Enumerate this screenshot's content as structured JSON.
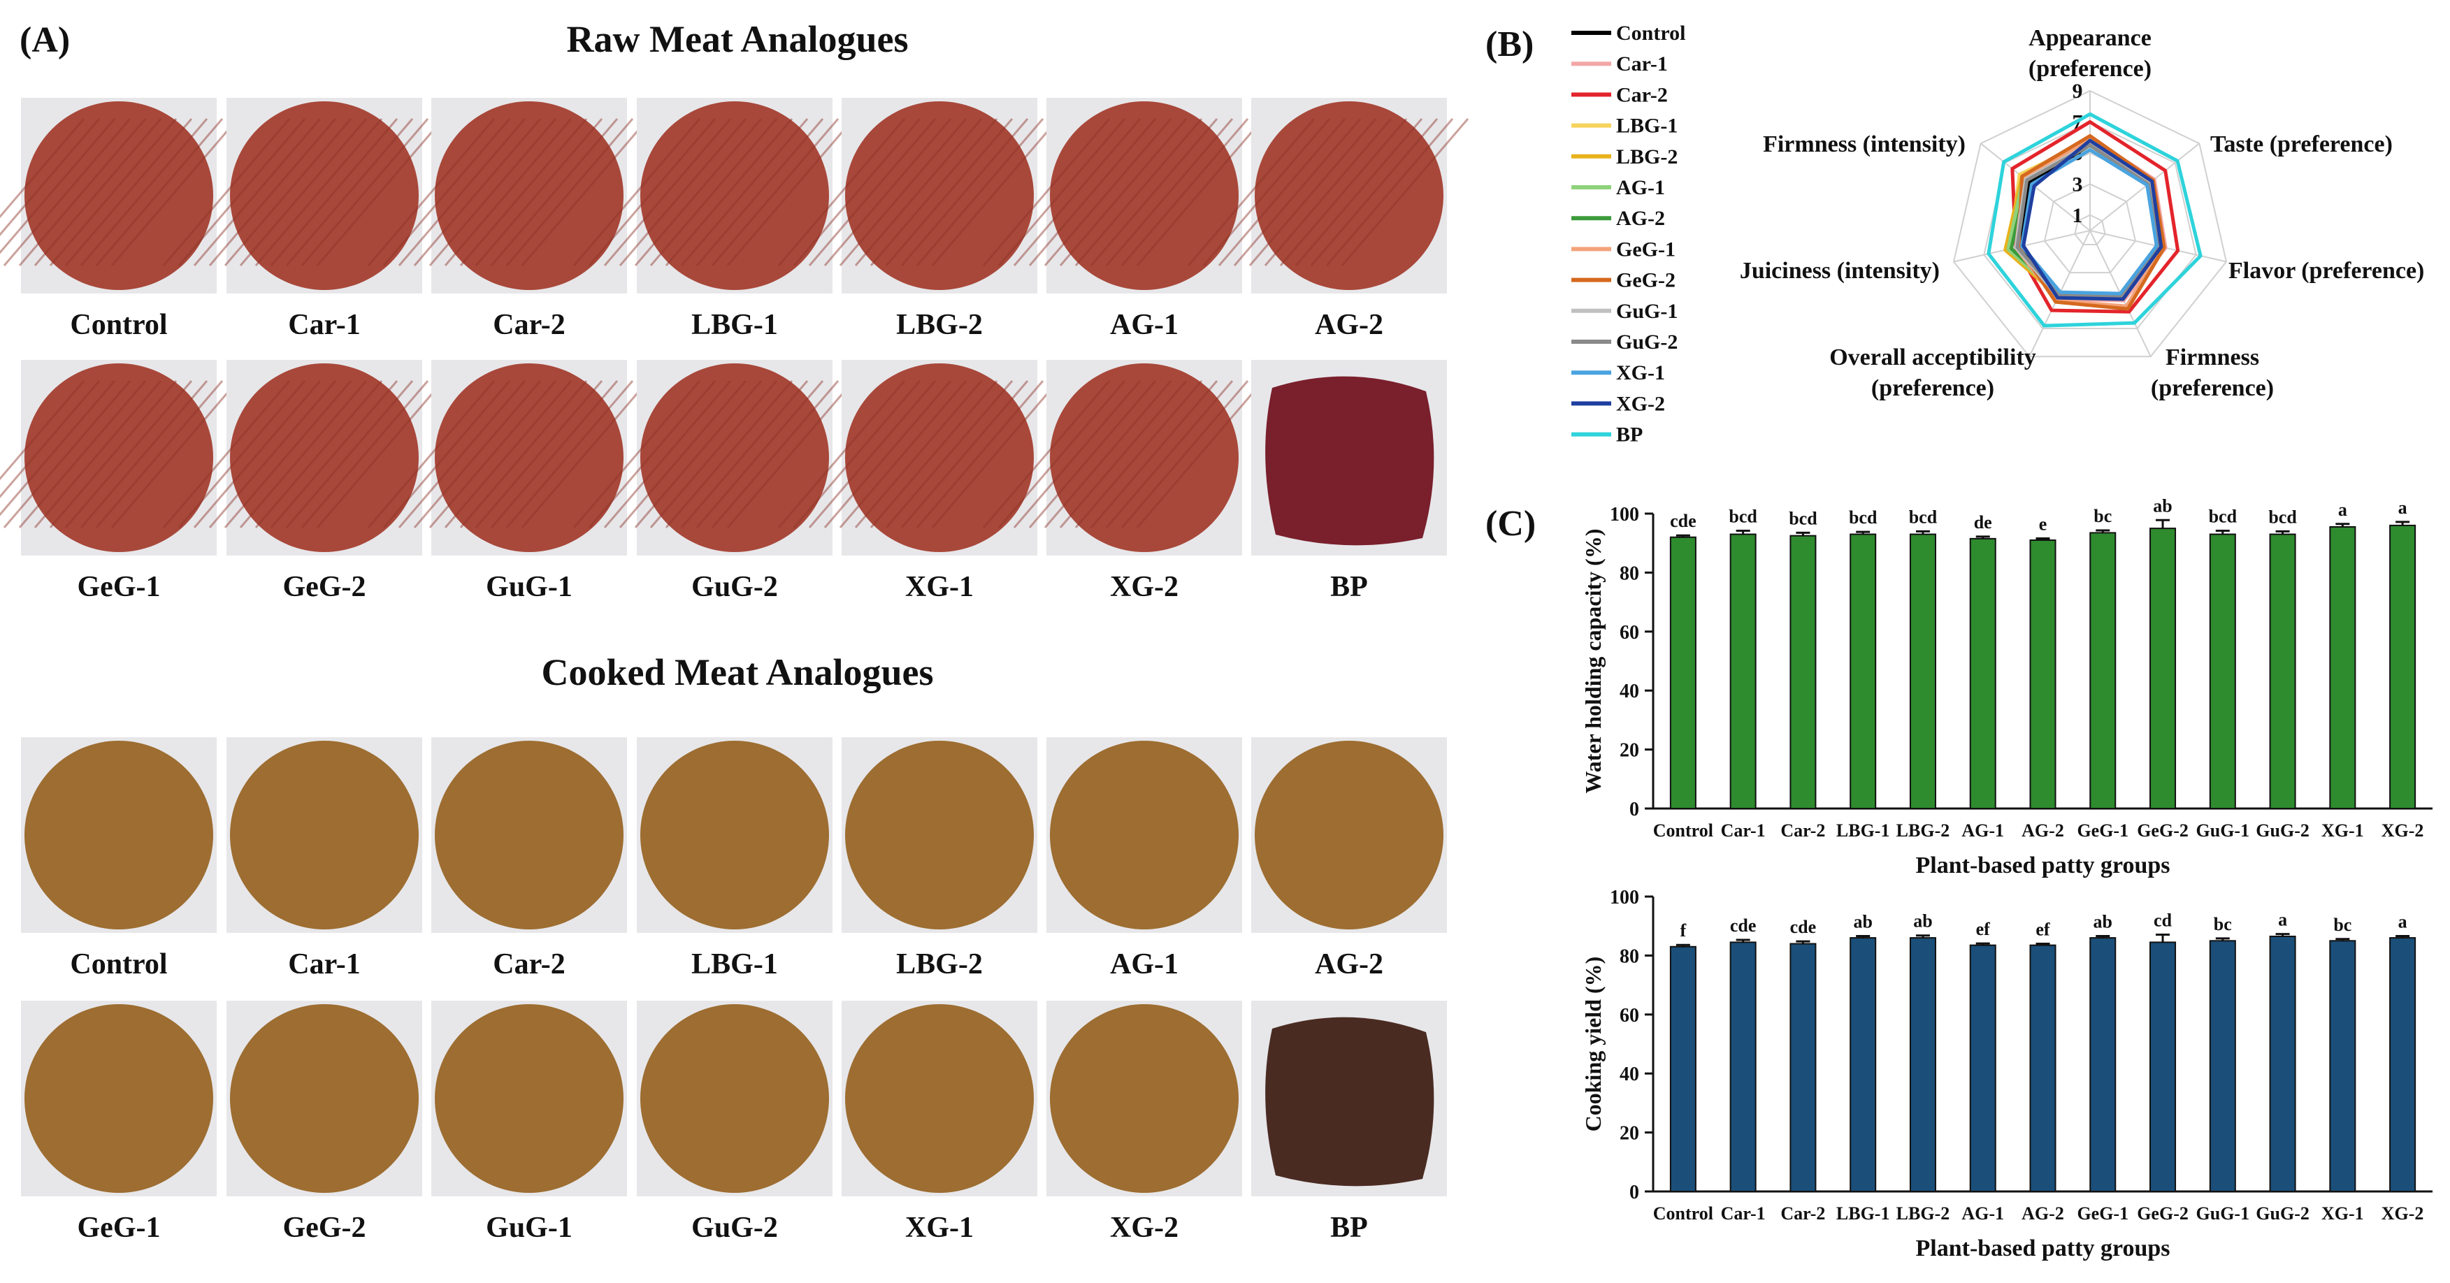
{
  "panel_labels": {
    "a": "(A)",
    "b": "(B)",
    "c": "(C)"
  },
  "photos": {
    "raw_title": "Raw Meat Analogues",
    "cooked_title": "Cooked Meat Analogues",
    "row1_labels": [
      "Control",
      "Car-1",
      "Car-2",
      "LBG-1",
      "LBG-2",
      "AG-1",
      "AG-2"
    ],
    "row2_labels": [
      "GeG-1",
      "GeG-2",
      "GuG-1",
      "GuG-2",
      "XG-1",
      "XG-2",
      "BP"
    ],
    "colors": {
      "raw_patty": "#a8483a",
      "raw_bp": "#7a1f2c",
      "cooked_patty": "#9d6d31",
      "cooked_bp": "#4a2b22",
      "tray": "#e7e7ea"
    }
  },
  "chart_data": [
    {
      "type": "radar",
      "panel": "(B)",
      "axes": [
        "Appearance\n(preference)",
        "Taste (preference)",
        "Flavor (preference)",
        "Firmness\n(preference)",
        "Overall acceptibility\n(preference)",
        "Juiciness (intensity)",
        "Firmness (intensity)"
      ],
      "rlim": [
        0,
        9
      ],
      "ticks": [
        "1",
        "3",
        "5",
        "7",
        "9"
      ],
      "series": [
        {
          "name": "Control",
          "color": "#000000",
          "values": [
            5.5,
            4.8,
            4.4,
            4.6,
            4.6,
            4.6,
            5.0
          ]
        },
        {
          "name": "Car-1",
          "color": "#f4a6a6",
          "values": [
            6.0,
            5.3,
            5.0,
            5.0,
            4.9,
            4.8,
            5.7
          ]
        },
        {
          "name": "Car-2",
          "color": "#e3242b",
          "values": [
            7.0,
            6.2,
            5.8,
            5.8,
            5.7,
            4.9,
            6.4
          ]
        },
        {
          "name": "LBG-1",
          "color": "#f6d35b",
          "values": [
            5.8,
            5.0,
            4.7,
            4.9,
            4.8,
            5.3,
            5.8
          ]
        },
        {
          "name": "LBG-2",
          "color": "#e8b21c",
          "values": [
            5.6,
            5.0,
            4.6,
            4.8,
            4.7,
            5.6,
            5.6
          ]
        },
        {
          "name": "AG-1",
          "color": "#8fd27c",
          "values": [
            5.7,
            4.9,
            4.6,
            4.7,
            4.6,
            5.4,
            5.5
          ]
        },
        {
          "name": "AG-2",
          "color": "#3b9b3b",
          "values": [
            5.5,
            4.8,
            4.5,
            4.6,
            4.5,
            5.2,
            5.2
          ]
        },
        {
          "name": "GeG-1",
          "color": "#f3a37a",
          "values": [
            5.9,
            5.1,
            4.8,
            5.4,
            5.0,
            4.9,
            5.4
          ]
        },
        {
          "name": "GeG-2",
          "color": "#d4691f",
          "values": [
            6.1,
            5.2,
            4.9,
            5.6,
            5.1,
            4.7,
            5.6
          ]
        },
        {
          "name": "GuG-1",
          "color": "#c0c0c0",
          "values": [
            5.6,
            4.9,
            4.6,
            4.8,
            4.7,
            4.9,
            5.3
          ]
        },
        {
          "name": "GuG-2",
          "color": "#8a8a8a",
          "values": [
            5.5,
            4.8,
            4.5,
            4.7,
            4.6,
            4.8,
            5.2
          ]
        },
        {
          "name": "XG-1",
          "color": "#4aa3df",
          "values": [
            5.2,
            4.7,
            4.4,
            4.5,
            4.4,
            4.5,
            4.8
          ]
        },
        {
          "name": "XG-2",
          "color": "#1f3fa0",
          "values": [
            5.8,
            5.1,
            4.7,
            4.9,
            4.8,
            4.4,
            4.6
          ]
        },
        {
          "name": "BP",
          "color": "#2ed3db",
          "values": [
            7.5,
            7.2,
            7.3,
            6.6,
            6.8,
            6.7,
            7.1
          ]
        }
      ]
    },
    {
      "type": "bar",
      "panel": "(C)",
      "categories": [
        "Control",
        "Car-1",
        "Car-2",
        "LBG-1",
        "LBG-2",
        "AG-1",
        "AG-2",
        "GeG-1",
        "GeG-2",
        "GuG-1",
        "GuG-2",
        "XG-1",
        "XG-2"
      ],
      "values": [
        92,
        93,
        92.5,
        93,
        93,
        91.5,
        91,
        93.5,
        95,
        93,
        93,
        95.5,
        96
      ],
      "errors": [
        0.6,
        1.2,
        1.0,
        0.8,
        1.0,
        0.7,
        0.6,
        0.8,
        2.8,
        1.2,
        1.0,
        1.0,
        1.2
      ],
      "letters": [
        "cde",
        "bcd",
        "bcd",
        "bcd",
        "bcd",
        "de",
        "e",
        "bc",
        "ab",
        "bcd",
        "bcd",
        "a",
        "a"
      ],
      "ylabel": "Water holding capacity (%)",
      "xlabel": "Plant-based patty groups",
      "ylim": [
        0,
        100
      ],
      "yticks": [
        "0",
        "20",
        "40",
        "60",
        "80",
        "100"
      ],
      "color": "#2e8b2e"
    },
    {
      "type": "bar",
      "panel": "(C)",
      "categories": [
        "Control",
        "Car-1",
        "Car-2",
        "LBG-1",
        "LBG-2",
        "AG-1",
        "AG-2",
        "GeG-1",
        "GeG-2",
        "GuG-1",
        "GuG-2",
        "XG-1",
        "XG-2"
      ],
      "values": [
        83,
        84.5,
        84,
        86,
        86,
        83.5,
        83.5,
        86,
        84.5,
        85,
        86.5,
        85,
        86
      ],
      "errors": [
        0.6,
        0.8,
        0.8,
        0.6,
        0.8,
        0.6,
        0.5,
        0.6,
        2.6,
        0.8,
        0.8,
        0.6,
        0.6
      ],
      "letters": [
        "f",
        "cde",
        "cde",
        "ab",
        "ab",
        "ef",
        "ef",
        "ab",
        "cd",
        "bc",
        "a",
        "bc",
        "a"
      ],
      "ylabel": "Cooking yield (%)",
      "xlabel": "Plant-based patty groups",
      "ylim": [
        0,
        100
      ],
      "yticks": [
        "0",
        "20",
        "40",
        "60",
        "80",
        "100"
      ],
      "color": "#1b4f7a"
    }
  ]
}
